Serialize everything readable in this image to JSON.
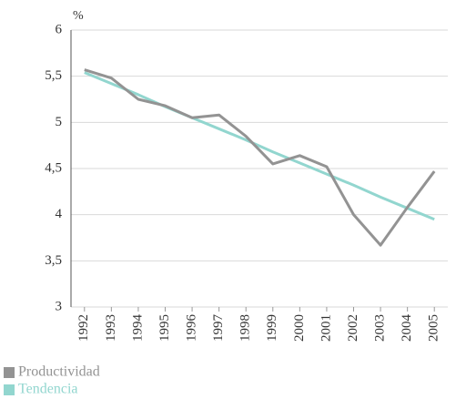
{
  "chart_data": {
    "type": "line",
    "y_unit": "%",
    "categories": [
      "1992",
      "1993",
      "1994",
      "1995",
      "1996",
      "1997",
      "1998",
      "1999",
      "2000",
      "2001",
      "2002",
      "2003",
      "2004",
      "2005"
    ],
    "series": [
      {
        "name": "Productividad",
        "color": "#939393",
        "values": [
          5.57,
          5.48,
          5.25,
          5.18,
          5.05,
          5.08,
          4.85,
          4.55,
          4.64,
          4.52,
          4.0,
          3.67,
          4.08,
          4.47
        ]
      },
      {
        "name": "Tendencia",
        "color": "#92d6cf",
        "values": [
          5.54,
          5.42,
          5.3,
          5.17,
          5.05,
          4.93,
          4.81,
          4.68,
          4.56,
          4.44,
          4.32,
          4.19,
          4.07,
          3.95
        ]
      }
    ],
    "ylim": [
      3,
      6
    ],
    "yticks": [
      3,
      {
        "value": 3.5,
        "label": "3,5"
      },
      4,
      {
        "value": 4.5,
        "label": "4,5"
      },
      5,
      {
        "value": 5.5,
        "label": "5,5"
      },
      6
    ],
    "grid": true,
    "legend": "bottom-left"
  }
}
